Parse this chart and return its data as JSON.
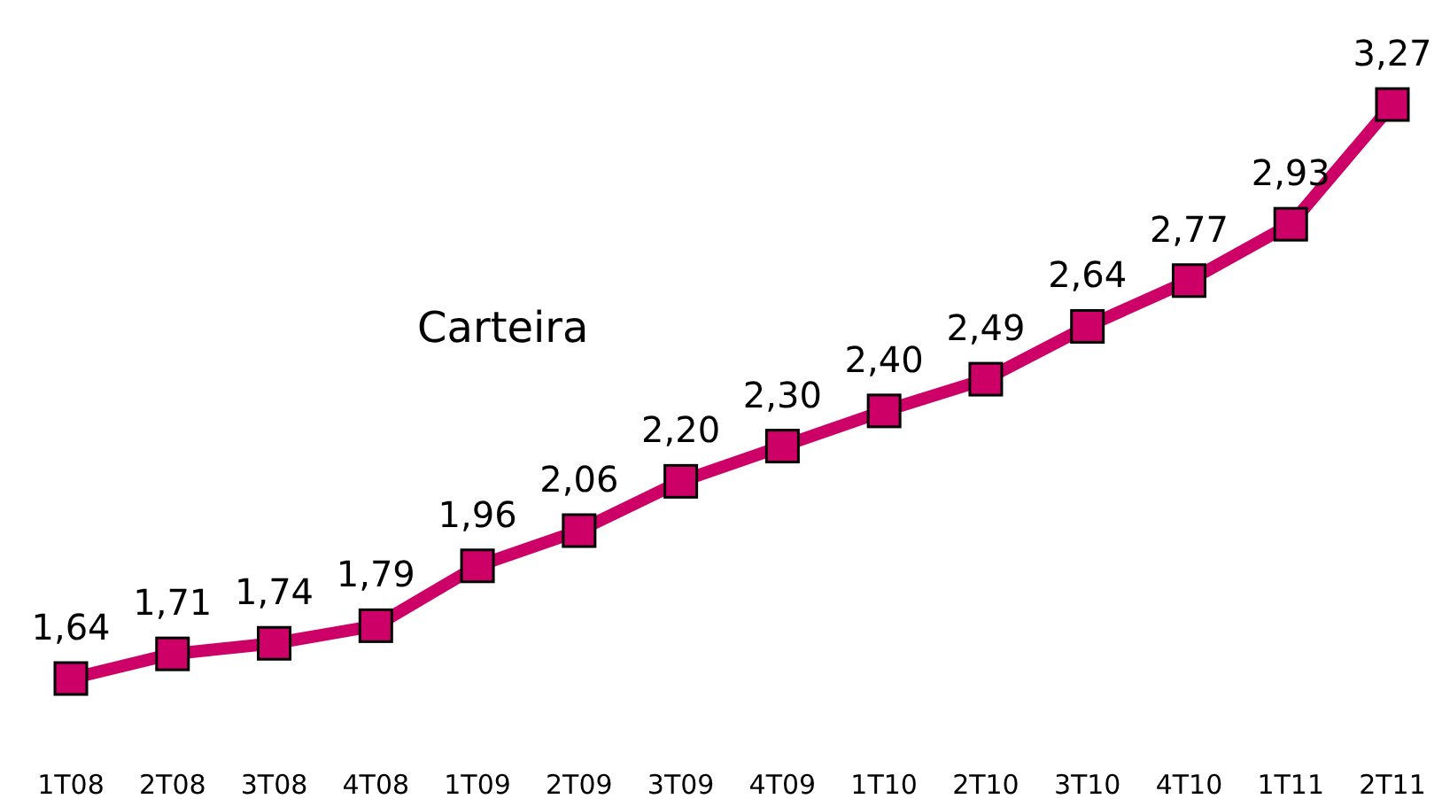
{
  "chart_data": {
    "type": "line",
    "categories": [
      "1T08",
      "2T08",
      "3T08",
      "4T08",
      "1T09",
      "2T09",
      "3T09",
      "4T09",
      "1T10",
      "2T10",
      "3T10",
      "4T10",
      "1T11",
      "2T11"
    ],
    "series": [
      {
        "name": "Carteira",
        "color": "#cc0066",
        "values": [
          1.64,
          1.71,
          1.74,
          1.79,
          1.96,
          2.06,
          2.2,
          2.3,
          2.4,
          2.49,
          2.64,
          2.77,
          2.93,
          3.27
        ],
        "value_labels": [
          "1,64",
          "1,71",
          "1,74",
          "1,79",
          "1,96",
          "2,06",
          "2,20",
          "2,30",
          "2,40",
          "2,49",
          "2,64",
          "2,77",
          "2,93",
          "3,27"
        ]
      }
    ],
    "marker": "square",
    "line_style": "solid"
  }
}
